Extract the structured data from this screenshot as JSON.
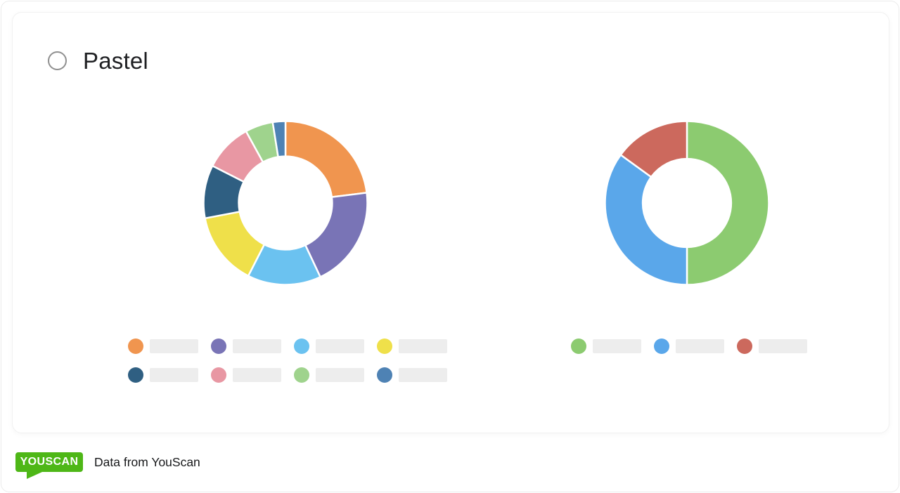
{
  "palette_option": {
    "label": "Pastel",
    "selected": false
  },
  "footer": {
    "logo_text": "YOUSCAN",
    "caption": "Data from YouScan",
    "logo_color": "#4EB717"
  },
  "legend_placeholder_color": "#ededed",
  "chart_data": [
    {
      "type": "donut",
      "title": "",
      "inner_ratio": 0.57,
      "legend_columns": 4,
      "legend_labels_visible": false,
      "series": [
        {
          "name": "orange",
          "value": 23,
          "color": "#F0954F"
        },
        {
          "name": "purple",
          "value": 20,
          "color": "#7974B6"
        },
        {
          "name": "light-blue",
          "value": 14.5,
          "color": "#6BC2F0"
        },
        {
          "name": "yellow",
          "value": 14.5,
          "color": "#EFE04A"
        },
        {
          "name": "dark-teal",
          "value": 10.5,
          "color": "#2F5F82"
        },
        {
          "name": "pink",
          "value": 9.5,
          "color": "#E897A3"
        },
        {
          "name": "light-green",
          "value": 5.5,
          "color": "#9FD38D"
        },
        {
          "name": "steel-blue",
          "value": 2.5,
          "color": "#4E82B4"
        }
      ]
    },
    {
      "type": "donut",
      "title": "",
      "inner_ratio": 0.54,
      "legend_columns": 3,
      "legend_labels_visible": false,
      "series": [
        {
          "name": "green",
          "value": 50,
          "color": "#8CCB70"
        },
        {
          "name": "blue",
          "value": 35,
          "color": "#5AA7EA"
        },
        {
          "name": "red",
          "value": 15,
          "color": "#CC695D"
        }
      ]
    }
  ]
}
